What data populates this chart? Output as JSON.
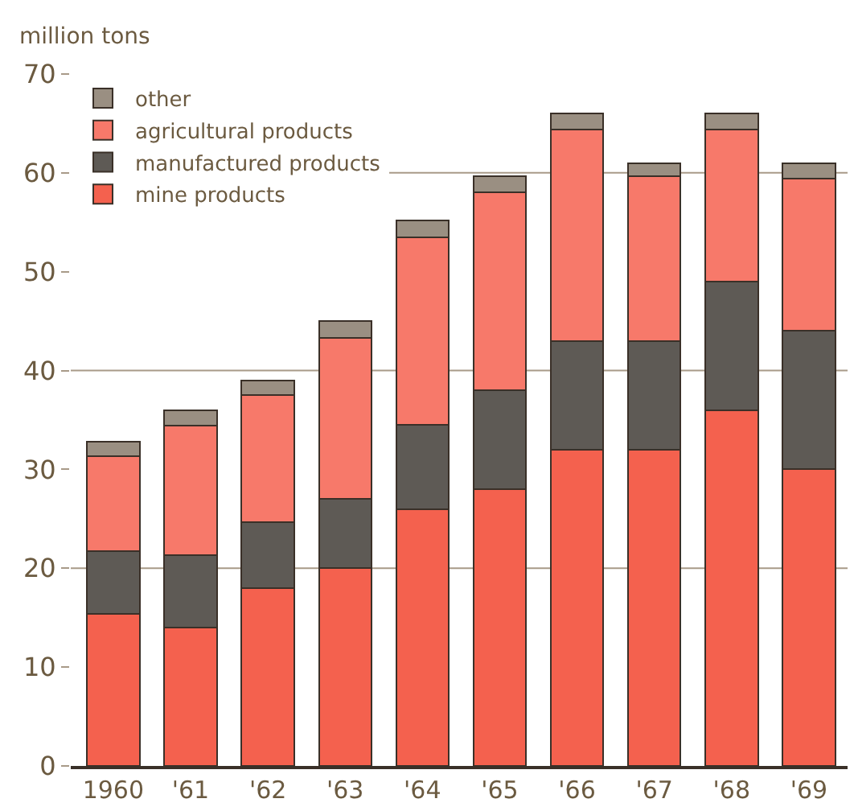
{
  "chart_data": {
    "type": "bar",
    "stacked": true,
    "ylabel": "million tons",
    "categories": [
      "1960",
      "'61",
      "'62",
      "'63",
      "'64",
      "'65",
      "'66",
      "'67",
      "'68",
      "'69"
    ],
    "series": [
      {
        "name": "mine products",
        "color": "#f4614e",
        "values": [
          15.4,
          14,
          18,
          20,
          26,
          28,
          32,
          32,
          36,
          30
        ]
      },
      {
        "name": "manufactured products",
        "color": "#5e5a55",
        "values": [
          6.3,
          7.3,
          6.7,
          7,
          8.5,
          10,
          11,
          11,
          13,
          14
        ]
      },
      {
        "name": "agricultural products",
        "color": "#f7796a",
        "values": [
          9.6,
          13.1,
          12.8,
          16.3,
          19,
          20,
          21.4,
          16.7,
          15.4,
          15.4
        ]
      },
      {
        "name": "other",
        "color": "#9a8f82",
        "values": [
          1.5,
          1.6,
          1.5,
          1.7,
          1.7,
          1.7,
          1.6,
          1.3,
          1.6,
          1.6
        ]
      }
    ],
    "ylim": [
      0,
      70
    ],
    "yticks": [
      0,
      10,
      20,
      30,
      40,
      50,
      60,
      70
    ],
    "ref_lines": [
      {
        "axis": "y",
        "value": 20,
        "color": "#a89a88"
      },
      {
        "axis": "y",
        "value": 40,
        "color": "#a89a88"
      },
      {
        "axis": "y",
        "value": 60,
        "color": "#a89a88"
      }
    ],
    "legend": "top left",
    "grid": false
  }
}
